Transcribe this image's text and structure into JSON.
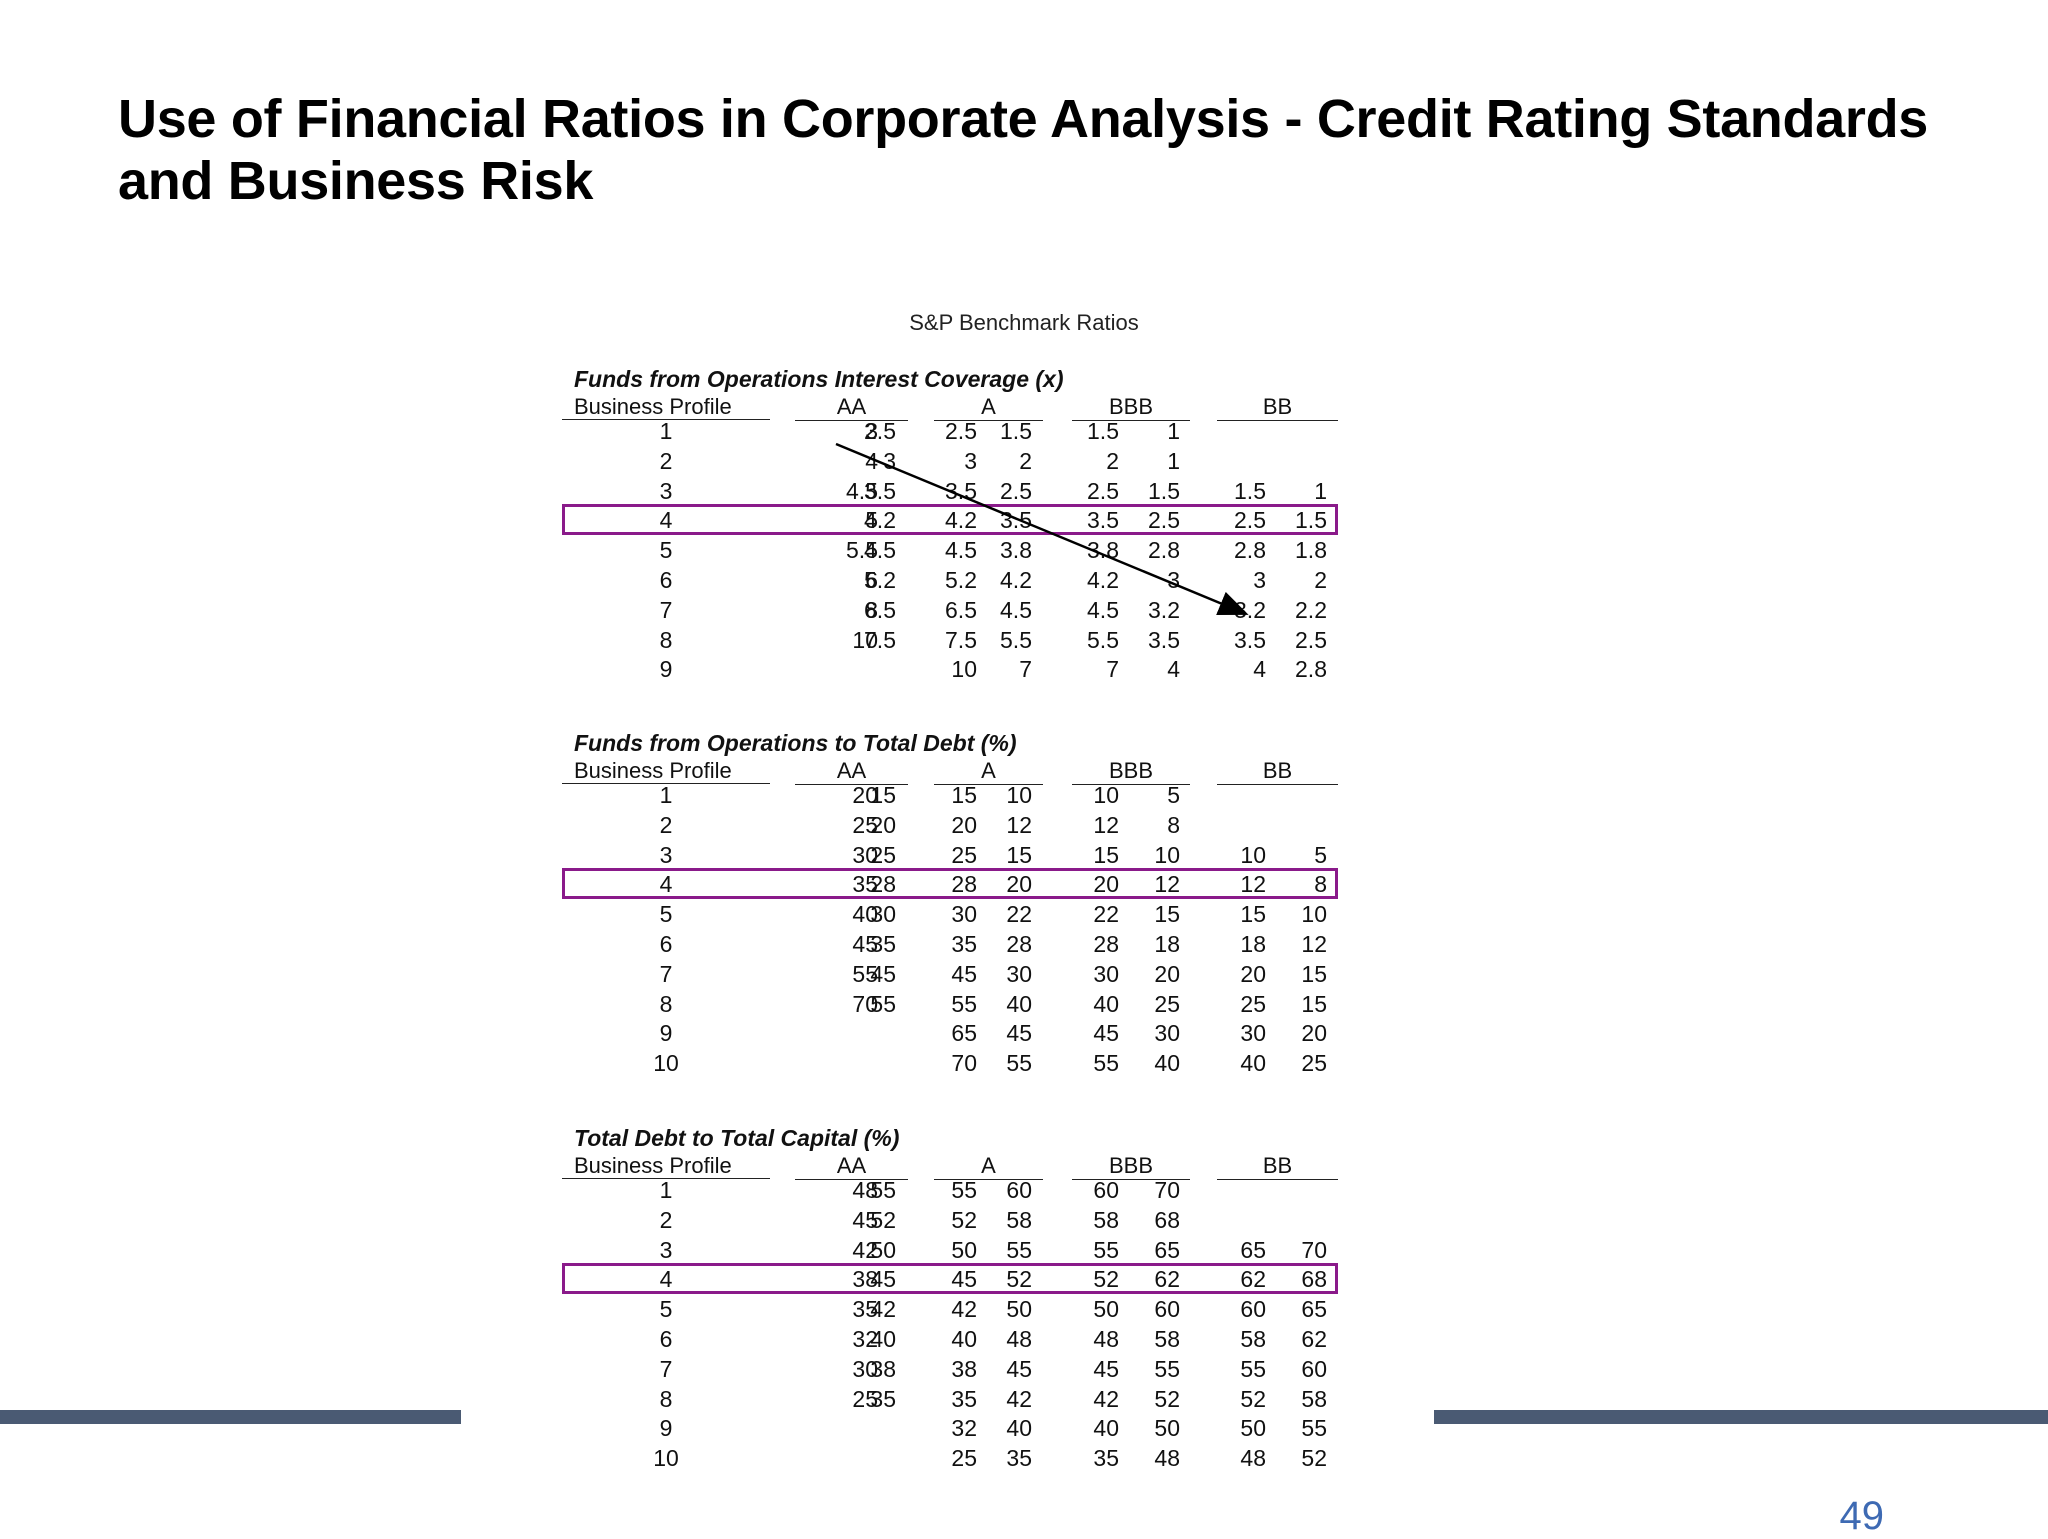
{
  "slide": {
    "title": "Use of Financial Ratios in Corporate Analysis - Credit Rating Standards and Business Risk",
    "page_number": "49"
  },
  "table": {
    "title": "S&P Benchmark Ratios",
    "rating_headers": [
      "AA",
      "A",
      "BBB",
      "BB"
    ],
    "profile_header": "Business Profile",
    "highlight_profile": "4",
    "sections": [
      {
        "title": "Funds from Operations Interest Coverage (x)",
        "rows": [
          {
            "profile": "1",
            "values": [
              "3",
              "2.5",
              "2.5",
              "1.5",
              "1.5",
              "1",
              "",
              ""
            ]
          },
          {
            "profile": "2",
            "values": [
              "4",
              "3",
              "3",
              "2",
              "2",
              "1",
              "",
              ""
            ]
          },
          {
            "profile": "3",
            "values": [
              "4.5",
              "3.5",
              "3.5",
              "2.5",
              "2.5",
              "1.5",
              "1.5",
              "1"
            ]
          },
          {
            "profile": "4",
            "values": [
              "5",
              "4.2",
              "4.2",
              "3.5",
              "3.5",
              "2.5",
              "2.5",
              "1.5"
            ]
          },
          {
            "profile": "5",
            "values": [
              "5.5",
              "4.5",
              "4.5",
              "3.8",
              "3.8",
              "2.8",
              "2.8",
              "1.8"
            ]
          },
          {
            "profile": "6",
            "values": [
              "6",
              "5.2",
              "5.2",
              "4.2",
              "4.2",
              "3",
              "3",
              "2"
            ]
          },
          {
            "profile": "7",
            "values": [
              "8",
              "6.5",
              "6.5",
              "4.5",
              "4.5",
              "3.2",
              "3.2",
              "2.2"
            ]
          },
          {
            "profile": "8",
            "values": [
              "10",
              "7.5",
              "7.5",
              "5.5",
              "5.5",
              "3.5",
              "3.5",
              "2.5"
            ]
          },
          {
            "profile": "9",
            "values": [
              "",
              "",
              "10",
              "7",
              "7",
              "4",
              "4",
              "2.8"
            ]
          }
        ]
      },
      {
        "title": "Funds from Operations to Total Debt (%)",
        "rows": [
          {
            "profile": "1",
            "values": [
              "20",
              "15",
              "15",
              "10",
              "10",
              "5",
              "",
              ""
            ]
          },
          {
            "profile": "2",
            "values": [
              "25",
              "20",
              "20",
              "12",
              "12",
              "8",
              "",
              ""
            ]
          },
          {
            "profile": "3",
            "values": [
              "30",
              "25",
              "25",
              "15",
              "15",
              "10",
              "10",
              "5"
            ]
          },
          {
            "profile": "4",
            "values": [
              "35",
              "28",
              "28",
              "20",
              "20",
              "12",
              "12",
              "8"
            ]
          },
          {
            "profile": "5",
            "values": [
              "40",
              "30",
              "30",
              "22",
              "22",
              "15",
              "15",
              "10"
            ]
          },
          {
            "profile": "6",
            "values": [
              "45",
              "35",
              "35",
              "28",
              "28",
              "18",
              "18",
              "12"
            ]
          },
          {
            "profile": "7",
            "values": [
              "55",
              "45",
              "45",
              "30",
              "30",
              "20",
              "20",
              "15"
            ]
          },
          {
            "profile": "8",
            "values": [
              "70",
              "55",
              "55",
              "40",
              "40",
              "25",
              "25",
              "15"
            ]
          },
          {
            "profile": "9",
            "values": [
              "",
              "",
              "65",
              "45",
              "45",
              "30",
              "30",
              "20"
            ]
          },
          {
            "profile": "10",
            "values": [
              "",
              "",
              "70",
              "55",
              "55",
              "40",
              "40",
              "25"
            ]
          }
        ]
      },
      {
        "title": "Total Debt to Total Capital (%)",
        "rows": [
          {
            "profile": "1",
            "values": [
              "48",
              "55",
              "55",
              "60",
              "60",
              "70",
              "",
              ""
            ]
          },
          {
            "profile": "2",
            "values": [
              "45",
              "52",
              "52",
              "58",
              "58",
              "68",
              "",
              ""
            ]
          },
          {
            "profile": "3",
            "values": [
              "42",
              "50",
              "50",
              "55",
              "55",
              "65",
              "65",
              "70"
            ]
          },
          {
            "profile": "4",
            "values": [
              "38",
              "45",
              "45",
              "52",
              "52",
              "62",
              "62",
              "68"
            ]
          },
          {
            "profile": "5",
            "values": [
              "35",
              "42",
              "42",
              "50",
              "50",
              "60",
              "60",
              "65"
            ]
          },
          {
            "profile": "6",
            "values": [
              "32",
              "40",
              "40",
              "48",
              "48",
              "58",
              "58",
              "62"
            ]
          },
          {
            "profile": "7",
            "values": [
              "30",
              "38",
              "38",
              "45",
              "45",
              "55",
              "55",
              "60"
            ]
          },
          {
            "profile": "8",
            "values": [
              "25",
              "35",
              "35",
              "42",
              "42",
              "52",
              "52",
              "58"
            ]
          },
          {
            "profile": "9",
            "values": [
              "",
              "",
              "32",
              "40",
              "40",
              "50",
              "50",
              "55"
            ]
          },
          {
            "profile": "10",
            "values": [
              "",
              "",
              "25",
              "35",
              "35",
              "48",
              "48",
              "52"
            ]
          }
        ]
      }
    ]
  },
  "colors": {
    "highlight_border": "#8a1a8a",
    "footer_bar": "#4a5a73",
    "page_number": "#3e6ab3"
  }
}
